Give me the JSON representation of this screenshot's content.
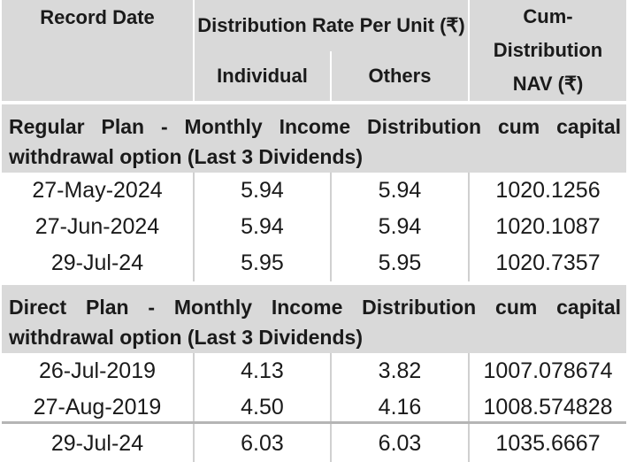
{
  "header": {
    "record_date": "Record Date",
    "distribution_rate": "Distribution Rate Per Unit (₹)",
    "individual": "Individual",
    "others": "Others",
    "cum_distribution_line1": "Cum-Distribution",
    "cum_distribution_line2": "NAV (₹)"
  },
  "sections": [
    {
      "title": "Regular Plan - Monthly Income Distribution cum capital withdrawal option (Last 3 Dividends)",
      "rows": [
        {
          "date": "27-May-2024",
          "individual": "5.94",
          "others": "5.94",
          "nav": "1020.1256"
        },
        {
          "date": "27-Jun-2024",
          "individual": "5.94",
          "others": "5.94",
          "nav": "1020.1087"
        },
        {
          "date": "29-Jul-24",
          "individual": "5.95",
          "others": "5.95",
          "nav": "1020.7357"
        }
      ]
    },
    {
      "title": "Direct Plan - Monthly Income Distribution cum capital withdrawal option (Last 3 Dividends)",
      "rows": [
        {
          "date": "26-Jul-2019",
          "individual": "4.13",
          "others": "3.82",
          "nav": "1007.078674"
        },
        {
          "date": "27-Aug-2019",
          "individual": "4.50",
          "others": "4.16",
          "nav": "1008.574828"
        },
        {
          "date": "29-Jul-24",
          "individual": "6.03",
          "others": "6.03",
          "nav": "1035.6667"
        }
      ]
    }
  ]
}
